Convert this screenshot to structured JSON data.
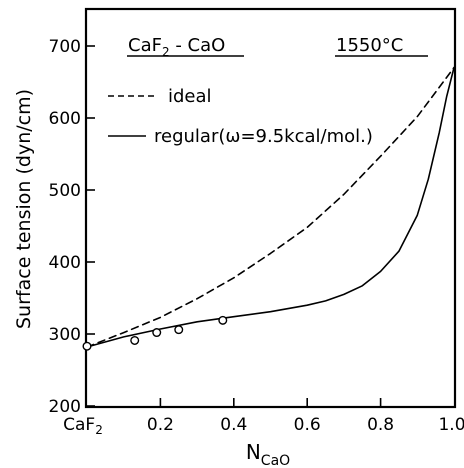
{
  "chart_data": {
    "type": "line",
    "system": {
      "base": "CaF",
      "sub": "2",
      "rest": " - CaO"
    },
    "temperature": "1550°C",
    "ylabel": "Surface tension (dyn/cm)",
    "xlabel": {
      "base": "N",
      "sub": "CaO"
    },
    "xlim": [
      0,
      1.0
    ],
    "ylim": [
      200,
      750
    ],
    "x_ticks": [
      {
        "value": 0,
        "label": "CaF",
        "sub": "2"
      },
      {
        "value": 0.2,
        "label": "0.2"
      },
      {
        "value": 0.4,
        "label": "0.4"
      },
      {
        "value": 0.6,
        "label": "0.6"
      },
      {
        "value": 0.8,
        "label": "0.8"
      },
      {
        "value": 1.0,
        "label": "1.0"
      }
    ],
    "y_ticks": [
      200,
      300,
      400,
      500,
      600,
      700
    ],
    "grid": false,
    "legend_placement": "top-left",
    "series": [
      {
        "name": "ideal",
        "style": "dashed",
        "x": [
          0,
          0.1,
          0.2,
          0.3,
          0.4,
          0.5,
          0.6,
          0.7,
          0.8,
          0.9,
          1.0
        ],
        "y": [
          282,
          302,
          323,
          349,
          378,
          412,
          448,
          494,
          547,
          602,
          670
        ]
      },
      {
        "name": "regular(ω=9.5kcal/mol.)",
        "style": "solid",
        "x": [
          0,
          0.1,
          0.2,
          0.3,
          0.4,
          0.5,
          0.6,
          0.65,
          0.7,
          0.75,
          0.8,
          0.85,
          0.9,
          0.93,
          0.96,
          0.98,
          1.0
        ],
        "y": [
          282,
          296,
          307,
          317,
          324,
          331,
          340,
          346,
          355,
          367,
          387,
          415,
          465,
          515,
          580,
          630,
          670
        ]
      }
    ],
    "experimental_points": {
      "x": [
        0,
        0.13,
        0.19,
        0.25,
        0.37
      ],
      "y": [
        283,
        291,
        302,
        306,
        319
      ]
    }
  }
}
